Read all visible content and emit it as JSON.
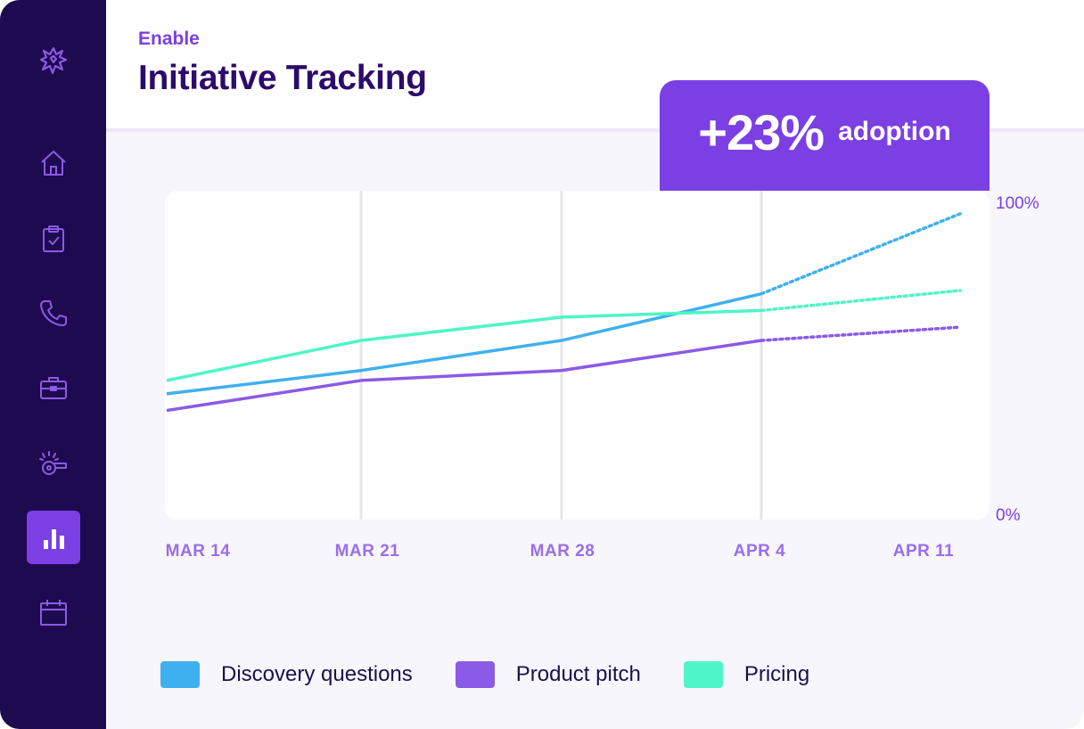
{
  "header": {
    "eyebrow": "Enable",
    "title": "Initiative Tracking"
  },
  "badge": {
    "value": "+23%",
    "label": "adoption"
  },
  "sidebar": {
    "items": [
      {
        "icon": "logo-burst-icon"
      },
      {
        "icon": "home-icon"
      },
      {
        "icon": "clipboard-check-icon"
      },
      {
        "icon": "phone-icon"
      },
      {
        "icon": "briefcase-icon"
      },
      {
        "icon": "whistle-icon"
      },
      {
        "icon": "bar-chart-icon",
        "active": true
      },
      {
        "icon": "calendar-icon"
      }
    ]
  },
  "colors": {
    "sidebar_bg": "#1e0a4e",
    "accent": "#7b3fe4",
    "discovery": "#3fb0ef",
    "pitch": "#8b5ae6",
    "pricing": "#4ef5c8",
    "gridline": "#e6e6e9"
  },
  "chart_data": {
    "type": "line",
    "categories": [
      "MAR 14",
      "MAR 21",
      "MAR 28",
      "APR 4",
      "APR 11"
    ],
    "y_tick_labels": [
      "100%",
      "0%"
    ],
    "ylim": [
      0,
      100
    ],
    "grid": "vertical",
    "legend_position": "bottom",
    "forecast_from_index": 3,
    "series": [
      {
        "name": "Discovery questions",
        "color": "#3fb0ef",
        "values": [
          38,
          45,
          54,
          68,
          92
        ]
      },
      {
        "name": "Product pitch",
        "color": "#8b5ae6",
        "values": [
          33,
          42,
          45,
          54,
          58
        ]
      },
      {
        "name": "Pricing",
        "color": "#4ef5c8",
        "values": [
          42,
          54,
          61,
          63,
          69
        ]
      }
    ]
  }
}
